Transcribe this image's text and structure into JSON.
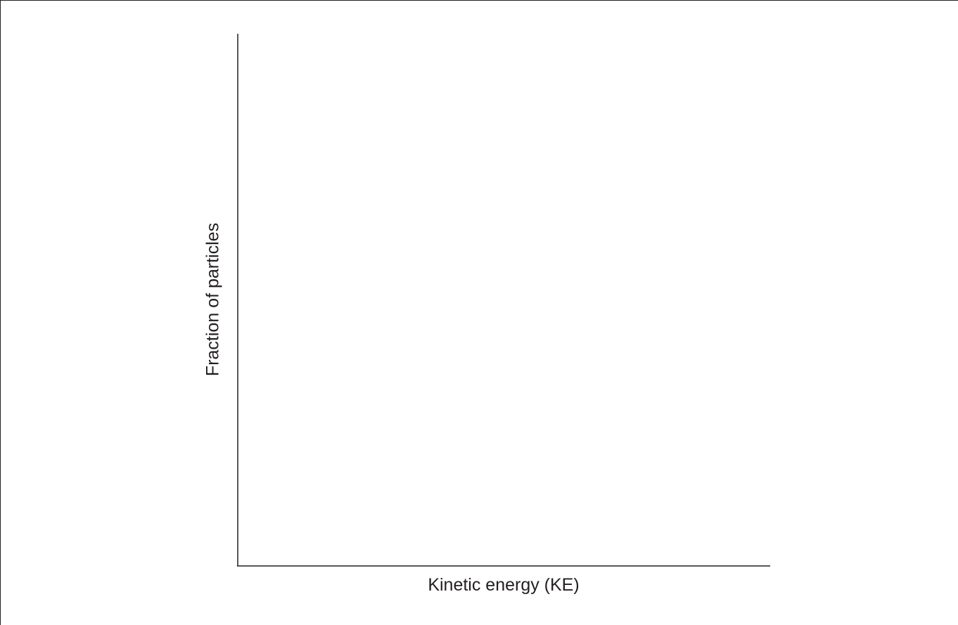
{
  "diagram": {
    "xlabel": "Kinetic energy (KE)",
    "ylabel": "Fraction of particles",
    "colors": {
      "ink": "#231f20",
      "background": "#ffffff"
    }
  }
}
